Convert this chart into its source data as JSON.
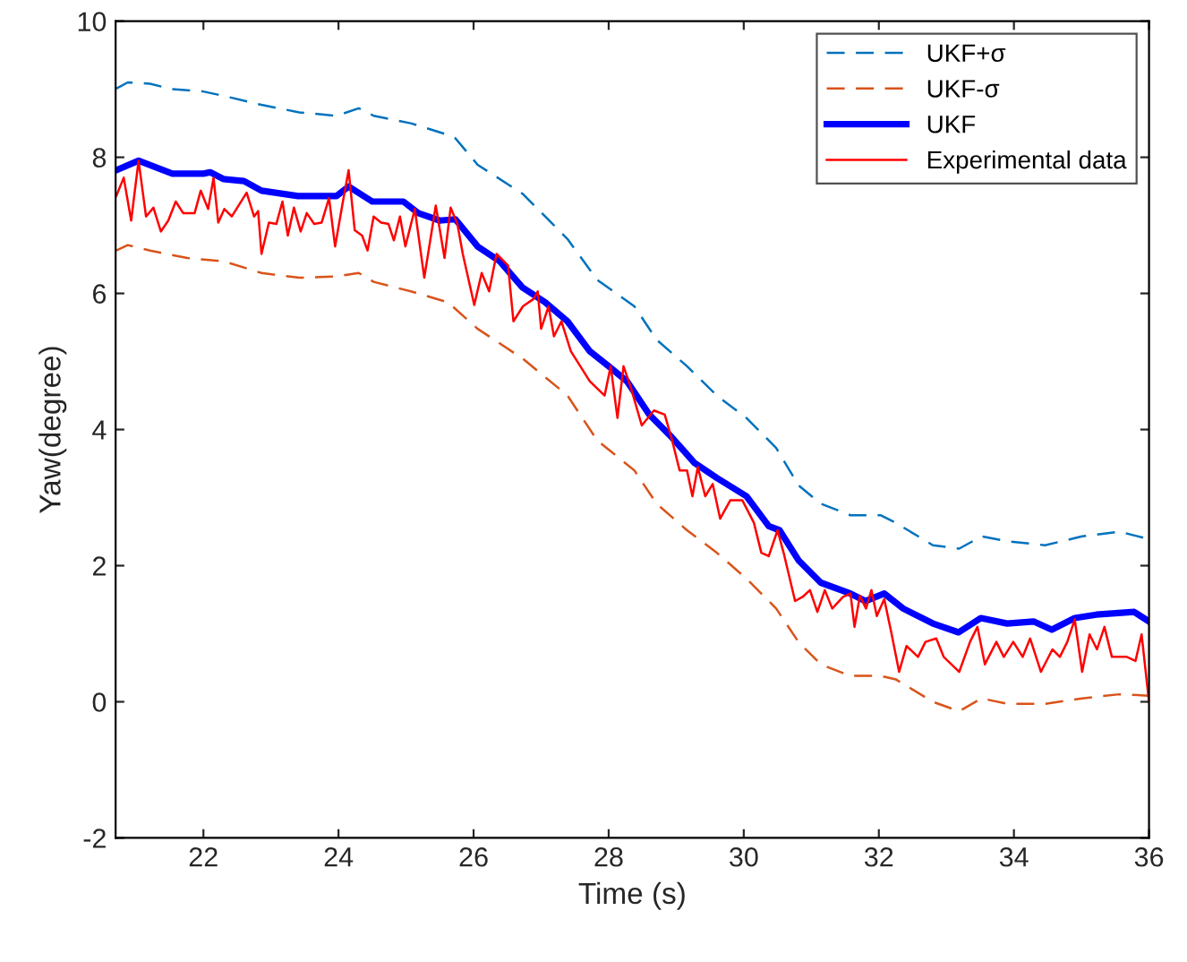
{
  "chart_data": {
    "type": "line",
    "xlabel": "Time (s)",
    "ylabel": "Yaw(degree)",
    "xlim": [
      20.7,
      36
    ],
    "ylim": [
      -2,
      10
    ],
    "xticks": [
      22,
      24,
      26,
      28,
      30,
      32,
      34,
      36
    ],
    "yticks": [
      -2,
      0,
      2,
      4,
      6,
      8,
      10
    ],
    "grid": false,
    "legend": "top right",
    "marker": "none",
    "series": [
      {
        "name": "UKF+σ",
        "color": "#0072bd",
        "line_style": "dashed",
        "x": [
          20.71,
          20.88,
          21.21,
          21.54,
          21.98,
          22.31,
          22.86,
          23.42,
          23.97,
          24.3,
          24.52,
          25.07,
          25.62,
          25.73,
          26.06,
          26.73,
          27.39,
          27.83,
          28.38,
          28.71,
          29.16,
          29.6,
          30.04,
          30.48,
          30.81,
          31.14,
          31.58,
          32.03,
          32.25,
          32.8,
          33.19,
          33.52,
          33.9,
          34.46,
          35.01,
          35.56,
          36.0
        ],
        "values": [
          9.01,
          9.1,
          9.08,
          9.0,
          8.97,
          8.9,
          8.77,
          8.66,
          8.61,
          8.72,
          8.61,
          8.5,
          8.33,
          8.28,
          7.89,
          7.46,
          6.8,
          6.2,
          5.81,
          5.32,
          4.93,
          4.5,
          4.17,
          3.73,
          3.18,
          2.91,
          2.74,
          2.74,
          2.63,
          2.3,
          2.25,
          2.43,
          2.36,
          2.3,
          2.43,
          2.5,
          2.39
        ]
      },
      {
        "name": "UKF-σ",
        "color": "#d95319",
        "line_style": "dashed",
        "x": [
          20.71,
          20.88,
          21.21,
          21.76,
          22.31,
          22.86,
          23.42,
          23.97,
          24.3,
          24.52,
          25.07,
          25.62,
          26.06,
          26.73,
          27.39,
          27.83,
          28.38,
          28.71,
          29.16,
          29.6,
          30.04,
          30.48,
          30.81,
          31.14,
          31.58,
          32.03,
          32.25,
          32.8,
          33.19,
          33.52,
          33.9,
          34.46,
          35.01,
          35.56,
          36.0
        ],
        "values": [
          6.63,
          6.71,
          6.63,
          6.52,
          6.47,
          6.3,
          6.23,
          6.25,
          6.3,
          6.17,
          6.03,
          5.87,
          5.48,
          5.04,
          4.5,
          3.84,
          3.4,
          2.91,
          2.52,
          2.19,
          1.81,
          1.37,
          0.88,
          0.55,
          0.38,
          0.38,
          0.33,
          0.0,
          -0.14,
          0.05,
          -0.03,
          -0.03,
          0.05,
          0.11,
          0.09
        ]
      },
      {
        "name": "UKF",
        "color": "#0000ff",
        "line_style": "solid",
        "x": [
          20.71,
          21.04,
          21.54,
          22.0,
          22.1,
          22.3,
          22.6,
          22.86,
          23.4,
          23.97,
          24.15,
          24.5,
          24.96,
          25.18,
          25.5,
          25.73,
          26.06,
          26.39,
          26.72,
          27.06,
          27.39,
          27.72,
          28.0,
          28.27,
          28.6,
          28.93,
          29.27,
          29.6,
          30.04,
          30.37,
          30.53,
          30.81,
          31.14,
          31.58,
          31.8,
          32.08,
          32.36,
          32.8,
          33.18,
          33.51,
          33.9,
          34.29,
          34.56,
          34.9,
          35.22,
          35.78,
          36.0
        ],
        "values": [
          7.81,
          7.95,
          7.76,
          7.76,
          7.78,
          7.68,
          7.65,
          7.51,
          7.43,
          7.43,
          7.57,
          7.35,
          7.35,
          7.18,
          7.07,
          7.09,
          6.69,
          6.47,
          6.09,
          5.87,
          5.59,
          5.15,
          4.93,
          4.71,
          4.22,
          3.89,
          3.51,
          3.29,
          3.02,
          2.58,
          2.52,
          2.08,
          1.75,
          1.59,
          1.48,
          1.59,
          1.37,
          1.15,
          1.02,
          1.23,
          1.15,
          1.18,
          1.06,
          1.23,
          1.28,
          1.32,
          1.18
        ]
      },
      {
        "name": "Experimental data",
        "color": "#ff0000",
        "line_style": "solid",
        "x": [
          20.71,
          20.82,
          20.93,
          21.04,
          21.15,
          21.26,
          21.37,
          21.48,
          21.59,
          21.7,
          21.87,
          21.96,
          22.07,
          22.15,
          22.22,
          22.31,
          22.42,
          22.59,
          22.64,
          22.75,
          22.81,
          22.86,
          22.97,
          23.08,
          23.17,
          23.25,
          23.34,
          23.44,
          23.53,
          23.64,
          23.75,
          23.86,
          23.95,
          24.06,
          24.15,
          24.24,
          24.35,
          24.43,
          24.52,
          24.63,
          24.74,
          24.82,
          24.91,
          24.99,
          25.13,
          25.27,
          25.44,
          25.57,
          25.66,
          25.76,
          25.84,
          26.01,
          26.12,
          26.23,
          26.34,
          26.51,
          26.59,
          26.73,
          26.89,
          26.95,
          27.0,
          27.11,
          27.19,
          27.3,
          27.44,
          27.72,
          27.94,
          28.03,
          28.13,
          28.22,
          28.33,
          28.49,
          28.67,
          28.83,
          28.94,
          29.05,
          29.16,
          29.24,
          29.32,
          29.43,
          29.54,
          29.65,
          29.8,
          29.98,
          30.15,
          30.26,
          30.37,
          30.5,
          30.59,
          30.76,
          30.87,
          30.98,
          31.09,
          31.2,
          31.31,
          31.47,
          31.58,
          31.64,
          31.72,
          31.81,
          31.89,
          31.97,
          32.08,
          32.19,
          32.3,
          32.41,
          32.58,
          32.69,
          32.85,
          32.96,
          33.19,
          33.35,
          33.46,
          33.57,
          33.74,
          33.85,
          33.99,
          34.13,
          34.24,
          34.4,
          34.57,
          34.68,
          34.79,
          34.9,
          35.01,
          35.12,
          35.23,
          35.34,
          35.45,
          35.67,
          35.8,
          35.89,
          36.0
        ],
        "values": [
          7.43,
          7.7,
          7.07,
          7.95,
          7.13,
          7.26,
          6.91,
          7.07,
          7.35,
          7.18,
          7.18,
          7.51,
          7.24,
          7.7,
          7.04,
          7.24,
          7.13,
          7.4,
          7.48,
          7.13,
          7.21,
          6.58,
          7.04,
          7.02,
          7.35,
          6.85,
          7.26,
          6.91,
          7.18,
          7.02,
          7.04,
          7.4,
          6.69,
          7.32,
          7.81,
          6.93,
          6.85,
          6.63,
          7.13,
          7.04,
          7.02,
          6.78,
          7.13,
          6.69,
          7.24,
          6.23,
          7.29,
          6.52,
          7.26,
          7.02,
          6.58,
          5.83,
          6.3,
          6.03,
          6.58,
          6.41,
          5.59,
          5.81,
          5.92,
          6.03,
          5.48,
          5.81,
          5.37,
          5.59,
          5.15,
          4.71,
          4.5,
          4.93,
          4.17,
          4.93,
          4.61,
          4.06,
          4.28,
          4.22,
          3.84,
          3.4,
          3.4,
          3.02,
          3.45,
          3.02,
          3.2,
          2.69,
          2.96,
          2.96,
          2.63,
          2.19,
          2.14,
          2.52,
          2.19,
          1.48,
          1.54,
          1.64,
          1.32,
          1.64,
          1.37,
          1.54,
          1.59,
          1.1,
          1.56,
          1.37,
          1.64,
          1.26,
          1.51,
          0.99,
          0.44,
          0.82,
          0.66,
          0.88,
          0.93,
          0.66,
          0.44,
          0.88,
          1.1,
          0.55,
          0.88,
          0.66,
          0.88,
          0.66,
          0.93,
          0.44,
          0.77,
          0.66,
          0.88,
          1.21,
          0.44,
          0.99,
          0.77,
          1.1,
          0.66,
          0.66,
          0.6,
          0.99,
          0.0
        ]
      }
    ]
  }
}
